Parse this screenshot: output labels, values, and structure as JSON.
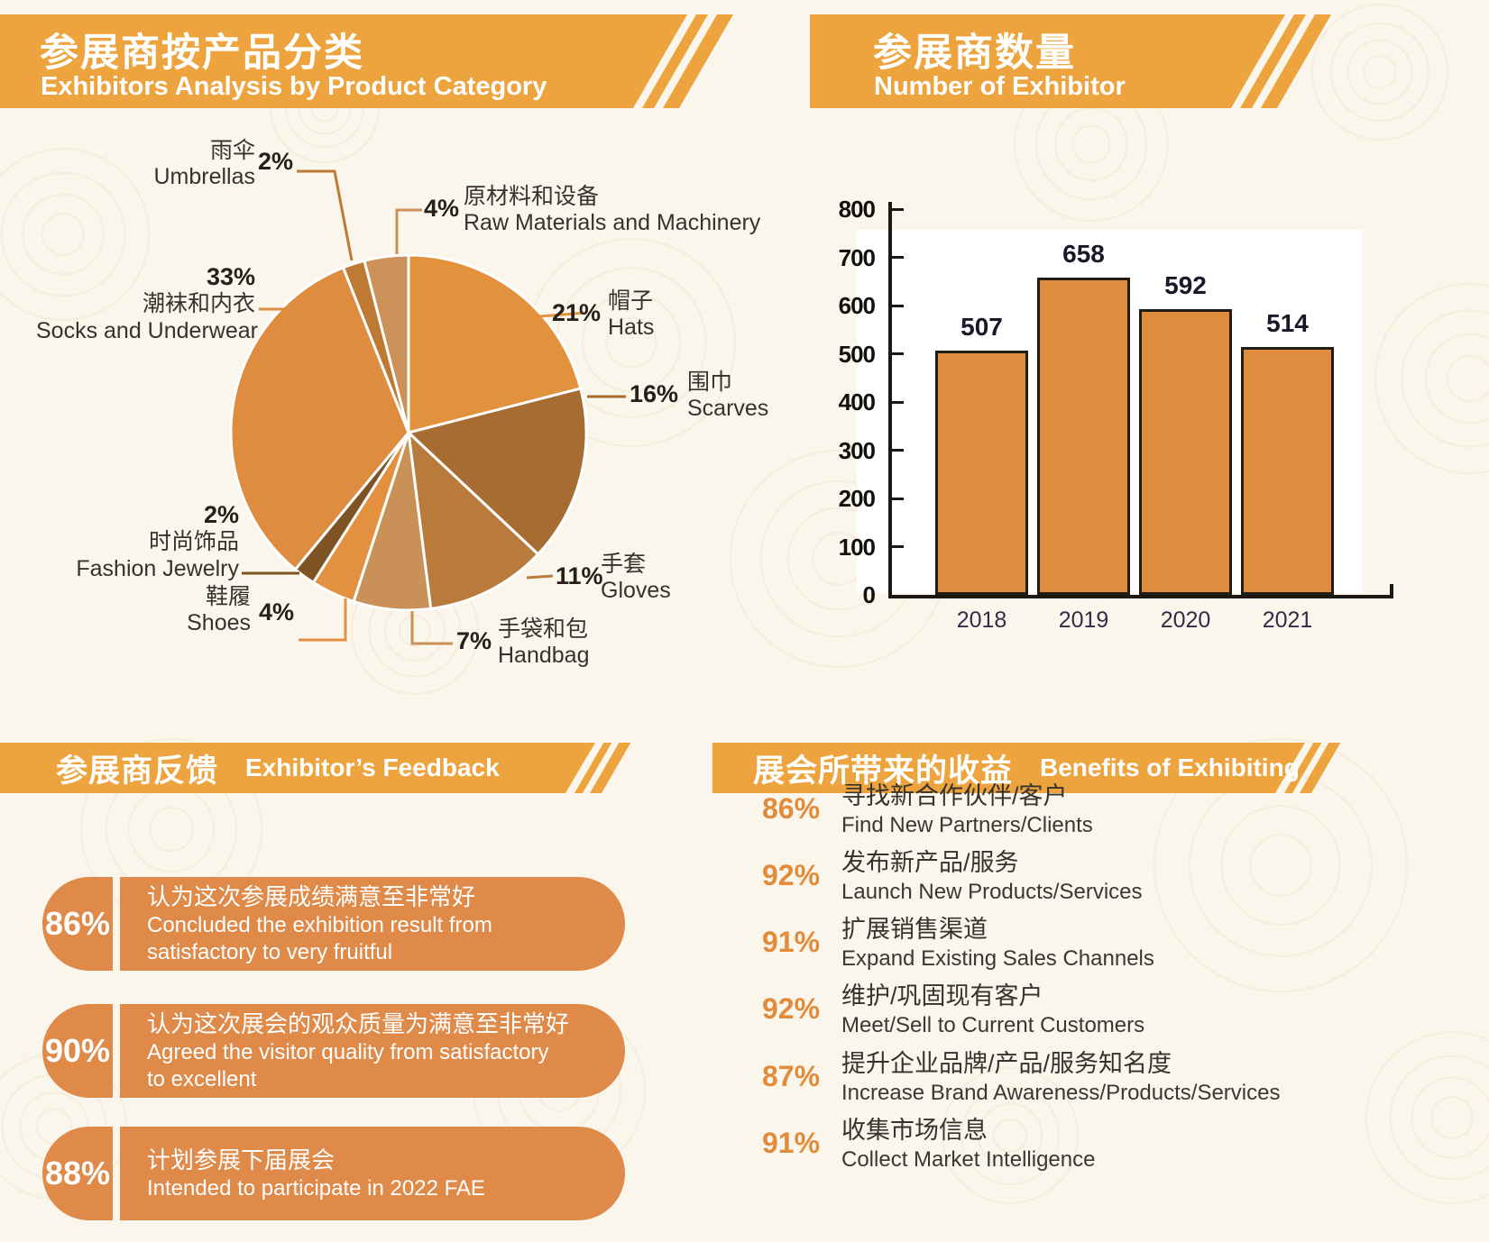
{
  "sections": {
    "pie": {
      "title_zh": "参展商按产品分类",
      "title_en": "Exhibitors Analysis by Product Category"
    },
    "bar": {
      "title_zh": "参展商数量",
      "title_en": "Number of Exhibitor"
    },
    "feedback": {
      "title_zh": "参展商反馈",
      "title_en": "Exhibitor’s Feedback"
    },
    "benefits": {
      "title_zh": "展会所带来的收益",
      "title_en": "Benefits of Exhibiting"
    }
  },
  "colors": {
    "banner": "#EEA43E",
    "pill": "#DF8A48",
    "benefit_pct": "#E28B3B",
    "bar_fill": "#E08C3E",
    "bar_border": "#211C15",
    "background": "#FBF6EB"
  },
  "chart_data": [
    {
      "type": "pie",
      "title": "Exhibitors Analysis by Product Category",
      "start_angle_deg": -90,
      "direction": "clockwise",
      "slices": [
        {
          "label_zh": "帽子",
          "label_en": "Hats",
          "pct": 21,
          "pct_label": "21%",
          "color": "#E2913D"
        },
        {
          "label_zh": "围巾",
          "label_en": "Scarves",
          "pct": 16,
          "pct_label": "16%",
          "color": "#A66C31"
        },
        {
          "label_zh": "手套",
          "label_en": "Gloves",
          "pct": 11,
          "pct_label": "11%",
          "color": "#B87B3C"
        },
        {
          "label_zh": "手袋和包",
          "label_en": "Handbag",
          "pct": 7,
          "pct_label": "7%",
          "color": "#C99157"
        },
        {
          "label_zh": "鞋履",
          "label_en": "Shoes",
          "pct": 4,
          "pct_label": "4%",
          "color": "#E39140"
        },
        {
          "label_zh": "时尚饰品",
          "label_en": "Fashion Jewelry",
          "pct": 2,
          "pct_label": "2%",
          "color": "#7E5424"
        },
        {
          "label_zh": "潮袜和内衣",
          "label_en": "Socks and Underwear",
          "pct": 33,
          "pct_label": "33%",
          "color": "#DE8C3F"
        },
        {
          "label_zh": "雨伞",
          "label_en": "Umbrellas",
          "pct": 2,
          "pct_label": "2%",
          "color": "#BE7A33"
        },
        {
          "label_zh": "原材料和设备",
          "label_en": "Raw Materials and Machinery",
          "pct": 4,
          "pct_label": "4%",
          "color": "#CC9059"
        }
      ]
    },
    {
      "type": "bar",
      "title": "Number of Exhibitor",
      "categories": [
        "2018",
        "2019",
        "2020",
        "2021"
      ],
      "values": [
        507,
        658,
        592,
        514
      ],
      "ylim": [
        0,
        800
      ],
      "ytick_step": 100,
      "grid": false,
      "legend": "none"
    }
  ],
  "feedback": {
    "items": [
      {
        "pct": "86%",
        "zh": "认为这次参展成绩满意至非常好",
        "en": "Concluded the exhibition result from\nsatisfactory to very fruitful"
      },
      {
        "pct": "90%",
        "zh": "认为这次展会的观众质量为满意至非常好",
        "en": "Agreed the visitor quality from satisfactory\nto excellent"
      },
      {
        "pct": "88%",
        "zh": "计划参展下届展会",
        "en": "Intended to participate in 2022 FAE"
      }
    ]
  },
  "benefits": {
    "items": [
      {
        "pct": "86%",
        "zh": "寻找新合作伙伴/客户",
        "en": "Find New Partners/Clients"
      },
      {
        "pct": "92%",
        "zh": "发布新产品/服务",
        "en": "Launch New Products/Services"
      },
      {
        "pct": "91%",
        "zh": "扩展销售渠道",
        "en": "Expand Existing Sales Channels"
      },
      {
        "pct": "92%",
        "zh": "维护/巩固现有客户",
        "en": "Meet/Sell to Current Customers"
      },
      {
        "pct": "87%",
        "zh": "提升企业品牌/产品/服务知名度",
        "en": "Increase Brand Awareness/Products/Services"
      },
      {
        "pct": "91%",
        "zh": "收集市场信息",
        "en": "Collect Market Intelligence"
      }
    ]
  }
}
